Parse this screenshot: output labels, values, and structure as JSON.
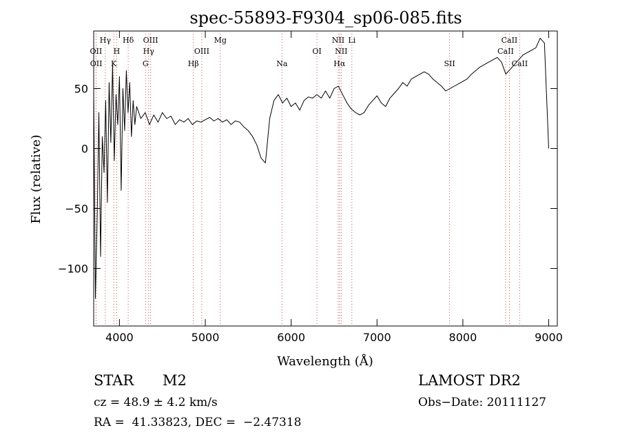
{
  "chart_data": {
    "type": "line",
    "title": "spec-55893-F9304_sp06-085.fits",
    "xlabel": "Wavelength (Å)",
    "ylabel": "Flux (relative)",
    "xlim": [
      3700,
      9100
    ],
    "ylim": [
      -148,
      98
    ],
    "xticks": [
      4000,
      5000,
      6000,
      7000,
      8000,
      9000
    ],
    "yticks": [
      -100,
      -50,
      0,
      50
    ],
    "grid": false,
    "line_color": "#000000",
    "marker_color": "#c0504d",
    "series": [
      {
        "x": [
          3700,
          3720,
          3740,
          3760,
          3780,
          3800,
          3820,
          3840,
          3860,
          3880,
          3900,
          3920,
          3940,
          3960,
          3980,
          4000,
          4020,
          4040,
          4060,
          4080,
          4100,
          4120,
          4140,
          4160,
          4180,
          4200,
          4250,
          4300,
          4350,
          4400,
          4450,
          4500,
          4550,
          4600,
          4650,
          4700,
          4750,
          4800,
          4850,
          4900,
          4950,
          5000,
          5050,
          5100,
          5150,
          5200,
          5250,
          5300,
          5350,
          5400,
          5450,
          5500,
          5550,
          5600,
          5650,
          5700,
          5750,
          5800,
          5850,
          5900,
          5950,
          6000,
          6050,
          6100,
          6150,
          6200,
          6250,
          6300,
          6350,
          6400,
          6450,
          6500,
          6550,
          6600,
          6650,
          6700,
          6750,
          6800,
          6850,
          6900,
          6950,
          7000,
          7050,
          7100,
          7150,
          7200,
          7250,
          7300,
          7350,
          7400,
          7450,
          7500,
          7550,
          7600,
          7650,
          7700,
          7750,
          7800,
          7850,
          7900,
          7950,
          8000,
          8050,
          8100,
          8150,
          8200,
          8250,
          8300,
          8350,
          8400,
          8450,
          8500,
          8550,
          8600,
          8650,
          8700,
          8750,
          8800,
          8850,
          8900,
          8950,
          9000
        ],
        "y": [
          50,
          -125,
          -60,
          30,
          -90,
          10,
          -20,
          40,
          -45,
          55,
          5,
          70,
          -10,
          45,
          20,
          60,
          -35,
          50,
          15,
          65,
          30,
          55,
          10,
          40,
          20,
          35,
          25,
          30,
          20,
          28,
          22,
          30,
          25,
          27,
          20,
          24,
          22,
          25,
          20,
          23,
          22,
          24,
          26,
          23,
          25,
          22,
          24,
          20,
          23,
          22,
          18,
          15,
          10,
          3,
          -8,
          -12,
          25,
          40,
          45,
          38,
          42,
          35,
          38,
          32,
          40,
          43,
          42,
          45,
          42,
          48,
          42,
          50,
          52,
          45,
          38,
          33,
          30,
          28,
          30,
          36,
          40,
          44,
          38,
          35,
          42,
          46,
          50,
          55,
          52,
          58,
          60,
          62,
          64,
          62,
          58,
          55,
          52,
          48,
          50,
          52,
          54,
          56,
          58,
          62,
          65,
          68,
          70,
          72,
          74,
          76,
          72,
          62,
          66,
          70,
          74,
          78,
          80,
          82,
          84,
          92,
          88,
          0
        ]
      }
    ],
    "line_markers": [
      {
        "label": "OII",
        "x": 3727,
        "row": 1
      },
      {
        "label": "OII",
        "x": 3729,
        "row": 2
      },
      {
        "label": "Hγ",
        "x": 3835,
        "row": 0
      },
      {
        "label": "H",
        "x": 3968,
        "row": 1
      },
      {
        "label": "K",
        "x": 3934,
        "row": 2
      },
      {
        "label": "Hδ",
        "x": 4102,
        "row": 0
      },
      {
        "label": "OIII",
        "x": 4363,
        "row": 0
      },
      {
        "label": "Hγ",
        "x": 4340,
        "row": 1
      },
      {
        "label": "G",
        "x": 4304,
        "row": 2
      },
      {
        "label": "OIII",
        "x": 4959,
        "row": 1
      },
      {
        "label": "Hβ",
        "x": 4861,
        "row": 2
      },
      {
        "label": "Mg",
        "x": 5175,
        "row": 0
      },
      {
        "label": "Na",
        "x": 5893,
        "row": 2
      },
      {
        "label": "OI",
        "x": 6300,
        "row": 1
      },
      {
        "label": "NII",
        "x": 6548,
        "row": 0
      },
      {
        "label": "NII",
        "x": 6583,
        "row": 1
      },
      {
        "label": "Hα",
        "x": 6563,
        "row": 2
      },
      {
        "label": "Li",
        "x": 6707,
        "row": 0
      },
      {
        "label": "SII",
        "x": 7845,
        "row": 2
      },
      {
        "label": "CaII",
        "x": 8542,
        "row": 0
      },
      {
        "label": "CaII",
        "x": 8498,
        "row": 1
      },
      {
        "label": "CaII",
        "x": 8662,
        "row": 2
      }
    ]
  },
  "info": {
    "object_class": "STAR",
    "subclass": "M2",
    "survey": "LAMOST DR2",
    "cz": "cz = 48.9 ± 4.2 km/s",
    "obs_date": "Obs−Date: 20111127",
    "coords": "RA =  41.33823, DEC =  −2.47318"
  }
}
